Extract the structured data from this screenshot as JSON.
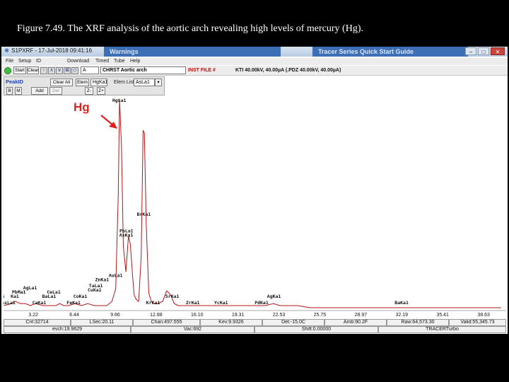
{
  "caption": "Figure 7.49. The XRF analysis of the aortic arch revealing high levels of mercury (Hg).",
  "window": {
    "title": "S1PXRF - 17-Jul-2018 09:41:16",
    "background_apps": [
      "Warnings",
      "Tracer Series Quick Start Guide"
    ],
    "buttons": {
      "minimize": "–",
      "maximize": "□",
      "close": "✕"
    }
  },
  "menu": [
    "File",
    "Setup",
    "ID",
    "Download",
    "Timed",
    "Tube",
    "Help"
  ],
  "toolbar": {
    "start": "Start",
    "clear": "Clear",
    "nav_arrows": [
      "↑",
      "∧",
      "∨",
      "⊠",
      "◇",
      "◇"
    ],
    "channel_select": "A",
    "sample_name": "CHRST Aortic arch",
    "inst_status": "INST FILE #",
    "settings": "KTI 40.00kV, 40.00µA (.PDZ 40.00kV, 40.00µA)"
  },
  "peakid": {
    "title": "PeakID",
    "b_btn": "B",
    "m_btn": "M",
    "clear_all": "Clear All",
    "elem_btn": "Elem",
    "elem_field": "HgKa1",
    "elem_list_label": "Elem List",
    "elem_list_value": "AsLa1",
    "add": "Add",
    "del": "Del",
    "z_minus": "Z-",
    "z_plus": "Z+"
  },
  "annotation": {
    "label": "Hg"
  },
  "chart_data": {
    "type": "line",
    "xlabel": "",
    "ylabel": "",
    "xlim": [
      0.88,
      40.4
    ],
    "x_ticks": [
      "3.22",
      "6.44",
      "9.66",
      "12.88",
      "16.10",
      "19.31",
      "22.53",
      "25.75",
      "28.97",
      "32.19",
      "35.41",
      "38.63"
    ],
    "series": [
      {
        "color": "#b01818",
        "x": [
          0.9,
          1.5,
          1.8,
          2.2,
          2.6,
          3.0,
          3.4,
          4.0,
          4.5,
          5.0,
          5.3,
          5.6,
          6.0,
          6.5,
          7.0,
          7.5,
          8.0,
          8.6,
          9.0,
          9.4,
          9.7,
          9.9,
          10.0,
          10.15,
          10.3,
          10.5,
          10.7,
          10.85,
          11.0,
          11.15,
          11.3,
          11.5,
          11.7,
          11.85,
          11.95,
          12.1,
          12.3,
          12.5,
          12.7,
          13.0,
          13.4,
          13.7,
          13.9,
          14.1,
          14.3,
          14.6,
          15.0,
          15.5,
          16.0,
          16.5,
          17.0,
          17.5,
          18.0,
          18.5,
          19.0,
          19.5,
          20.0,
          20.5,
          21.0,
          21.5,
          22.1,
          22.6,
          23.0,
          24.0,
          25.0,
          26.0,
          27.0,
          28.0,
          29.0,
          30.0,
          31.0,
          32.0,
          33.0,
          34.0,
          35.0,
          36.0,
          37.0,
          38.0,
          39.0,
          40.0
        ],
        "values": [
          2,
          3,
          4,
          3,
          3,
          2,
          3,
          2,
          2,
          2,
          3,
          2,
          2,
          3,
          2,
          3,
          2,
          2,
          2,
          4,
          10,
          55,
          100,
          78,
          30,
          18,
          35,
          31,
          18,
          7,
          5,
          4,
          25,
          85,
          84,
          40,
          8,
          4,
          3,
          3,
          4,
          9,
          8,
          6,
          3,
          2,
          2,
          2,
          2,
          2,
          2,
          2,
          2,
          2,
          2,
          2,
          2,
          2,
          2,
          2,
          3,
          2,
          2,
          2,
          1,
          1,
          1,
          1,
          1,
          1,
          1,
          1,
          1,
          1,
          1,
          1,
          1,
          1,
          1,
          1
        ]
      }
    ],
    "peak_labels": [
      {
        "text": "AsLa1",
        "x": 1.28,
        "y": 2
      },
      {
        "text": "S",
        "x": 1.3,
        "y": 5
      },
      {
        "text": "Ka1",
        "x": 2.0,
        "y": 5
      },
      {
        "text": "PbMa1",
        "x": 2.1,
        "y": 7
      },
      {
        "text": "AgLa1",
        "x": 2.98,
        "y": 9
      },
      {
        "text": "CaKa1",
        "x": 3.69,
        "y": 2
      },
      {
        "text": "BaLa1",
        "x": 4.47,
        "y": 5
      },
      {
        "text": "CeLa1",
        "x": 4.84,
        "y": 7
      },
      {
        "text": "FeKa1",
        "x": 6.4,
        "y": 2
      },
      {
        "text": "CoKa1",
        "x": 6.93,
        "y": 5
      },
      {
        "text": "CuKa1",
        "x": 8.05,
        "y": 8
      },
      {
        "text": "TaLa1",
        "x": 8.15,
        "y": 10
      },
      {
        "text": "ZnKa1",
        "x": 8.64,
        "y": 13
      },
      {
        "text": "AuLa1",
        "x": 9.71,
        "y": 15
      },
      {
        "text": "HgLa1",
        "x": 9.99,
        "y": 98
      },
      {
        "text": "PbLa1",
        "x": 10.55,
        "y": 36
      },
      {
        "text": "AsKa1",
        "x": 10.54,
        "y": 34
      },
      {
        "text": "BrKa1",
        "x": 11.92,
        "y": 44
      },
      {
        "text": "KrKa1",
        "x": 12.65,
        "y": 2
      },
      {
        "text": "SrKa1",
        "x": 14.16,
        "y": 5
      },
      {
        "text": "ZrKa1",
        "x": 15.77,
        "y": 2
      },
      {
        "text": "YcKa1",
        "x": 18.0,
        "y": 2
      },
      {
        "text": "PdKa1",
        "x": 21.18,
        "y": 2
      },
      {
        "text": "AgKa1",
        "x": 22.16,
        "y": 5
      },
      {
        "text": "BaKa1",
        "x": 32.19,
        "y": 2
      }
    ]
  },
  "status_row1": [
    "Cnt:32714",
    "LSec:20.11",
    "Chan:497.555",
    "Kev:9.9326",
    "Det:-15.0C",
    "Amb:90.2F",
    "Raw:64,573.30",
    "Valid:55,345.73"
  ],
  "status_row2": [
    "evch:19.9629",
    "Vac:692",
    "Shift:0.00000",
    "TRACERTurbo"
  ]
}
